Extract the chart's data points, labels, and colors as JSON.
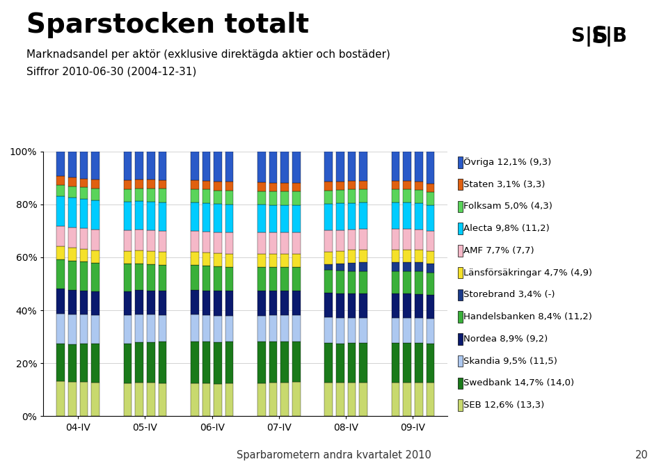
{
  "title": "Sparstocken totalt",
  "subtitle1": "Marknadsandel per aktör (exklusive direktägda aktier och bostäder)",
  "subtitle2": "Siffror 2010-06-30 (2004-12-31)",
  "footer": "Sparbarometern andra kvartalet 2010",
  "footer_page": "20",
  "x_labels": [
    "04-IV",
    "05-IV",
    "06-IV",
    "07-IV",
    "08-IV",
    "09-IV"
  ],
  "series": [
    {
      "name": "SEB 12,6% (13,3)",
      "color": "#c8d96e",
      "values": [
        13.3,
        13.0,
        12.8,
        12.5,
        12.3,
        12.6,
        12.4,
        12.2,
        12.1,
        12.0,
        11.8,
        11.9,
        12.0,
        12.1,
        12.2,
        12.3,
        12.4,
        12.5,
        12.6,
        12.6,
        12.5,
        12.6,
        12.6,
        12.6
      ]
    },
    {
      "name": "Swedbank 14,7% (14,0)",
      "color": "#1a7a1a",
      "values": [
        14.0,
        14.2,
        14.4,
        14.6,
        14.8,
        15.0,
        15.1,
        15.2,
        15.3,
        15.2,
        15.1,
        15.0,
        14.9,
        14.8,
        14.7,
        14.6,
        14.5,
        14.4,
        14.5,
        14.6,
        14.7,
        14.7,
        14.7,
        14.7
      ]
    },
    {
      "name": "Skandia 9,5% (11,5)",
      "color": "#adc8f0",
      "values": [
        11.5,
        11.2,
        10.9,
        10.7,
        10.5,
        10.3,
        10.1,
        9.9,
        9.8,
        9.7,
        9.6,
        9.5,
        9.5,
        9.5,
        9.5,
        9.5,
        9.5,
        9.5,
        9.5,
        9.5,
        9.5,
        9.5,
        9.5,
        9.5
      ]
    },
    {
      "name": "Nordea 8,9% (9,2)",
      "color": "#0a1a6e",
      "values": [
        9.2,
        9.1,
        9.0,
        9.0,
        9.0,
        9.0,
        8.9,
        8.9,
        8.9,
        8.9,
        8.9,
        8.9,
        8.9,
        8.9,
        8.9,
        8.9,
        8.9,
        8.9,
        8.9,
        8.9,
        8.9,
        8.9,
        8.9,
        8.9
      ]
    },
    {
      "name": "Handelsbanken 8,4% (11,2)",
      "color": "#3ab03a",
      "values": [
        11.2,
        11.0,
        10.8,
        10.5,
        10.2,
        10.0,
        9.8,
        9.5,
        9.2,
        9.0,
        8.8,
        8.7,
        8.6,
        8.5,
        8.4,
        8.4,
        8.4,
        8.4,
        8.4,
        8.4,
        8.4,
        8.4,
        8.4,
        8.4
      ]
    },
    {
      "name": "Storebrand 3,4% (-)",
      "color": "#1a3a8a",
      "values": [
        0.0,
        0.0,
        0.0,
        0.0,
        0.0,
        0.0,
        0.0,
        0.0,
        0.0,
        0.0,
        0.0,
        0.0,
        0.0,
        0.0,
        0.0,
        0.0,
        2.0,
        2.5,
        3.0,
        3.2,
        3.3,
        3.4,
        3.4,
        3.4
      ]
    },
    {
      "name": "Länsförsäkringar 4,7% (4,9)",
      "color": "#f5e12a",
      "values": [
        4.9,
        4.9,
        4.8,
        4.8,
        4.8,
        4.8,
        4.8,
        4.8,
        4.8,
        4.8,
        4.8,
        4.8,
        4.8,
        4.8,
        4.8,
        4.8,
        4.8,
        4.8,
        4.8,
        4.8,
        4.8,
        4.7,
        4.7,
        4.7
      ]
    },
    {
      "name": "AMF 7,7% (7,7)",
      "color": "#f5b8c8",
      "values": [
        7.7,
        7.7,
        7.7,
        7.7,
        7.7,
        7.7,
        7.7,
        7.7,
        7.7,
        7.7,
        7.7,
        7.7,
        7.7,
        7.7,
        7.7,
        7.7,
        7.7,
        7.7,
        7.7,
        7.7,
        7.7,
        7.7,
        7.7,
        7.7
      ]
    },
    {
      "name": "Alecta 9,8% (11,2)",
      "color": "#00ccff",
      "values": [
        11.2,
        11.1,
        11.0,
        10.9,
        10.8,
        10.7,
        10.6,
        10.5,
        10.4,
        10.3,
        10.2,
        10.1,
        10.0,
        9.9,
        9.8,
        9.8,
        9.8,
        9.8,
        9.8,
        9.8,
        9.8,
        9.8,
        9.8,
        9.8
      ]
    },
    {
      "name": "Folksam 5,0% (4,3)",
      "color": "#5ad45a",
      "values": [
        4.3,
        4.4,
        4.5,
        4.6,
        4.7,
        4.8,
        4.9,
        5.0,
        5.0,
        5.0,
        5.0,
        5.0,
        5.0,
        5.0,
        5.0,
        5.0,
        5.0,
        5.0,
        5.0,
        5.0,
        5.0,
        5.0,
        5.0,
        5.0
      ]
    },
    {
      "name": "Staten 3,1% (3,3)",
      "color": "#e06010",
      "values": [
        3.3,
        3.3,
        3.2,
        3.2,
        3.2,
        3.2,
        3.2,
        3.2,
        3.2,
        3.2,
        3.2,
        3.2,
        3.1,
        3.1,
        3.1,
        3.1,
        3.1,
        3.1,
        3.1,
        3.1,
        3.1,
        3.1,
        3.1,
        3.1
      ]
    },
    {
      "name": "Övriga 12,1% (9,3)",
      "color": "#2a5ac8",
      "values": [
        9.3,
        9.8,
        10.2,
        10.6,
        10.8,
        10.5,
        10.5,
        10.5,
        10.6,
        10.7,
        10.9,
        11.0,
        11.2,
        11.3,
        11.4,
        11.3,
        11.2,
        11.1,
        11.0,
        11.0,
        11.0,
        11.0,
        11.2,
        12.1
      ]
    }
  ],
  "n_bars": 24,
  "n_groups": 6,
  "bars_per_group": 4,
  "background_color": "#ffffff",
  "bar_width": 0.7,
  "title_fontsize": 28,
  "subtitle_fontsize": 11,
  "axis_fontsize": 10,
  "legend_fontsize": 9.5,
  "footer_bg": "#8ab832"
}
